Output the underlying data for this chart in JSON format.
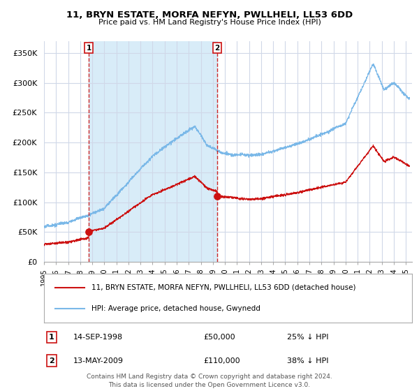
{
  "title": "11, BRYN ESTATE, MORFA NEFYN, PWLLHELI, LL53 6DD",
  "subtitle": "Price paid vs. HM Land Registry's House Price Index (HPI)",
  "ylabel_ticks": [
    "£0",
    "£50K",
    "£100K",
    "£150K",
    "£200K",
    "£250K",
    "£300K",
    "£350K"
  ],
  "ytick_values": [
    0,
    50000,
    100000,
    150000,
    200000,
    250000,
    300000,
    350000
  ],
  "ylim": [
    0,
    370000
  ],
  "hpi_color": "#7ab8e8",
  "hpi_fill_color": "#d8ecf8",
  "price_color": "#cc1111",
  "vline_color": "#cc1111",
  "transaction1": {
    "date_label": "14-SEP-1998",
    "year": 1998.71,
    "price": 50000,
    "label": "1",
    "pct": "25% ↓ HPI"
  },
  "transaction2": {
    "date_label": "13-MAY-2009",
    "year": 2009.36,
    "price": 110000,
    "label": "2",
    "pct": "38% ↓ HPI"
  },
  "legend_line1": "11, BRYN ESTATE, MORFA NEFYN, PWLLHELI, LL53 6DD (detached house)",
  "legend_line2": "HPI: Average price, detached house, Gwynedd",
  "footer": "Contains HM Land Registry data © Crown copyright and database right 2024.\nThis data is licensed under the Open Government Licence v3.0.",
  "xmin": 1995.0,
  "xmax": 2025.5,
  "background": "#ffffff",
  "grid_color": "#d0d8e8",
  "x_tick_years": [
    1995,
    1996,
    1997,
    1998,
    1999,
    2000,
    2001,
    2002,
    2003,
    2004,
    2005,
    2006,
    2007,
    2008,
    2009,
    2010,
    2011,
    2012,
    2013,
    2014,
    2015,
    2016,
    2017,
    2018,
    2019,
    2020,
    2021,
    2022,
    2023,
    2024,
    2025
  ]
}
